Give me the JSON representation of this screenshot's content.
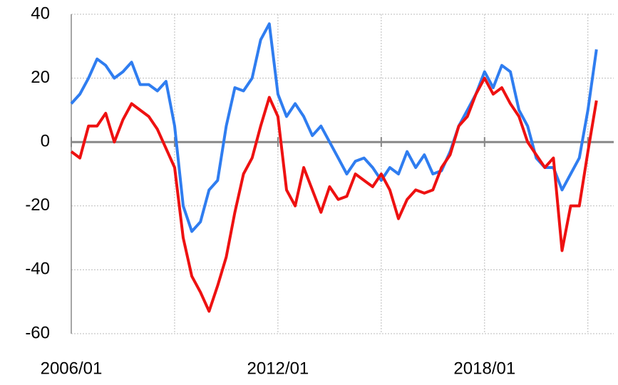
{
  "chart_data": {
    "type": "line",
    "x": [
      "2006/01",
      "2006/04",
      "2006/07",
      "2006/10",
      "2007/01",
      "2007/04",
      "2007/07",
      "2007/10",
      "2008/01",
      "2008/04",
      "2008/07",
      "2008/10",
      "2009/01",
      "2009/04",
      "2009/07",
      "2009/10",
      "2010/01",
      "2010/04",
      "2010/07",
      "2010/10",
      "2011/01",
      "2011/04",
      "2011/07",
      "2011/10",
      "2012/01",
      "2012/04",
      "2012/07",
      "2012/10",
      "2013/01",
      "2013/04",
      "2013/07",
      "2013/10",
      "2014/01",
      "2014/04",
      "2014/07",
      "2014/10",
      "2015/01",
      "2015/04",
      "2015/07",
      "2015/10",
      "2016/01",
      "2016/04",
      "2016/07",
      "2016/10",
      "2017/01",
      "2017/04",
      "2017/07",
      "2017/10",
      "2018/01",
      "2018/04",
      "2018/07",
      "2018/10",
      "2019/01",
      "2019/04",
      "2019/07",
      "2019/10",
      "2020/01",
      "2020/04",
      "2020/07",
      "2020/10",
      "2021/01",
      "2021/04"
    ],
    "series": [
      {
        "color": "#2f7df0",
        "values": [
          12,
          15,
          20,
          26,
          24,
          20,
          22,
          25,
          18,
          18,
          16,
          19,
          5,
          -20,
          -28,
          -25,
          -15,
          -12,
          5,
          17,
          16,
          20,
          32,
          37,
          15,
          8,
          12,
          8,
          2,
          5,
          0,
          -5,
          -10,
          -6,
          -5,
          -8,
          -12,
          -8,
          -10,
          -3,
          -8,
          -4,
          -10,
          -9,
          -3,
          5,
          10,
          15,
          22,
          17,
          24,
          22,
          10,
          5,
          -5,
          -8,
          -8,
          -15,
          -10,
          -5,
          10,
          29
        ]
      },
      {
        "color": "#ee1111",
        "values": [
          -3,
          -5,
          5,
          5,
          9,
          0,
          7,
          12,
          10,
          8,
          4,
          -2,
          -8,
          -30,
          -42,
          -47,
          -53,
          -45,
          -36,
          -22,
          -10,
          -5,
          5,
          14,
          8,
          -15,
          -20,
          -8,
          -15,
          -22,
          -14,
          -18,
          -17,
          -10,
          -12,
          -14,
          -10,
          -15,
          -24,
          -18,
          -15,
          -16,
          -15,
          -8,
          -4,
          5,
          8,
          15,
          20,
          15,
          17,
          12,
          8,
          0,
          -4,
          -8,
          -5,
          -34,
          -20,
          -20,
          -3,
          13
        ]
      }
    ],
    "xlim": [
      "2006/01",
      "2021/10"
    ],
    "xticks": [
      "2006/01",
      "2012/01",
      "2018/01"
    ],
    "xminorticks": [
      "2009/01",
      "2015/01",
      "2021/01"
    ],
    "ylim": [
      -60,
      40
    ],
    "yticks": [
      -60,
      -40,
      -20,
      0,
      20,
      40
    ],
    "grid": true
  }
}
